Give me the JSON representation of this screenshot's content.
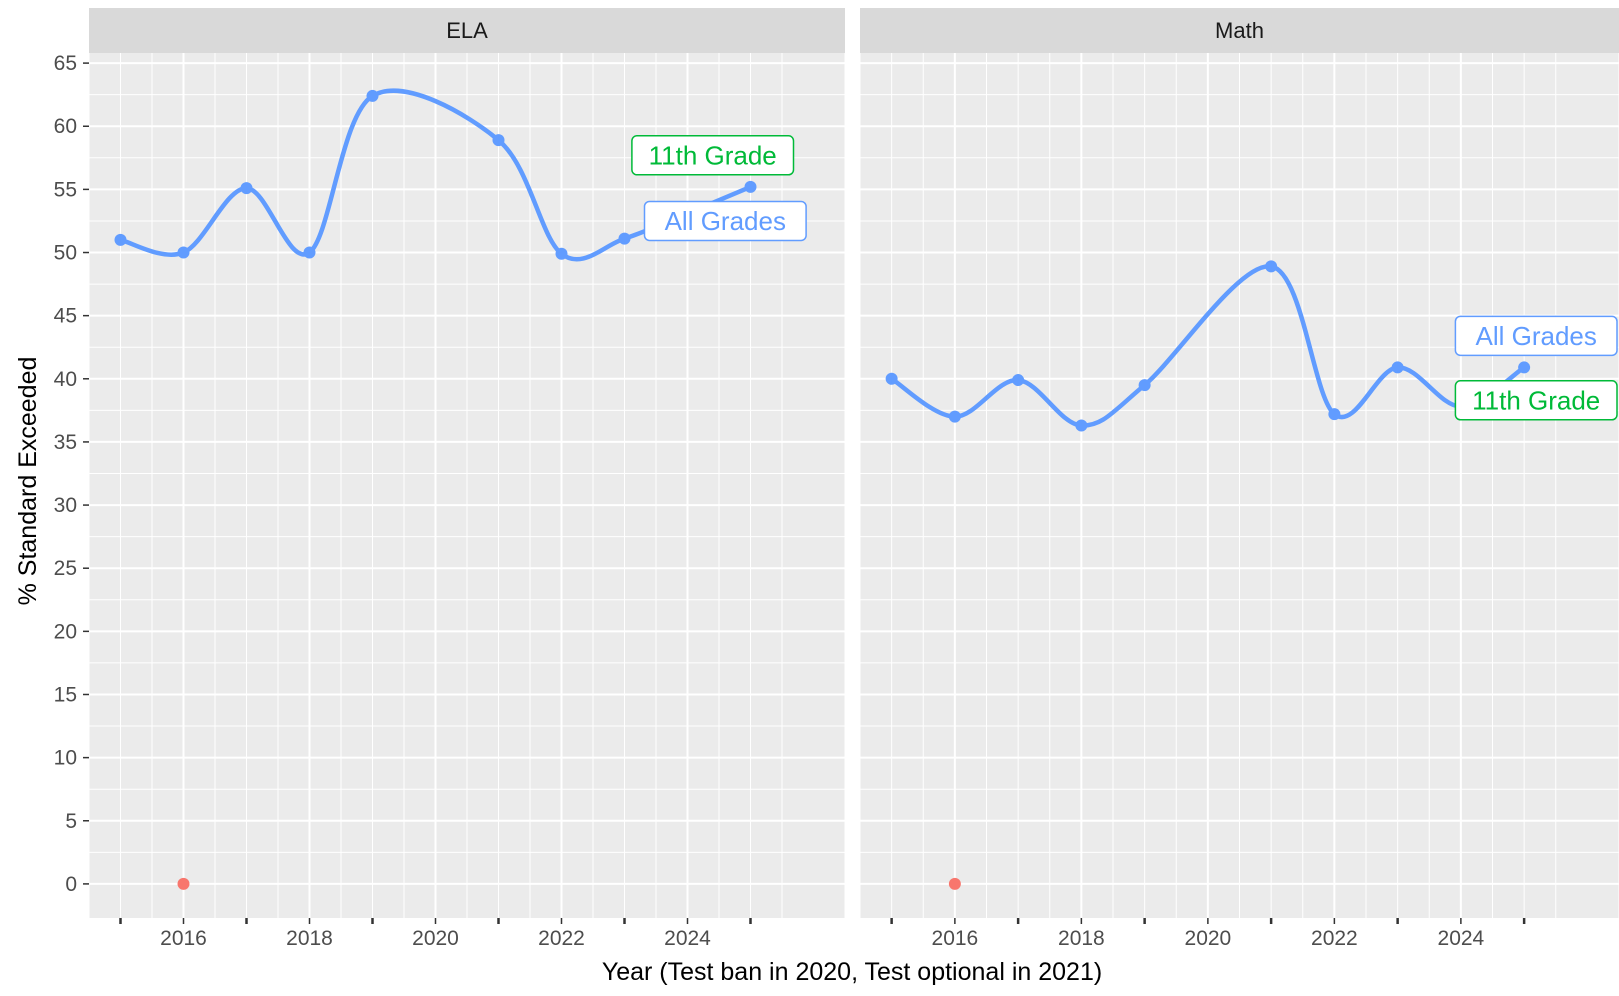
{
  "chart_data": {
    "type": "line",
    "facet_by": "subject",
    "panels": [
      "ELA",
      "Math"
    ],
    "xlabel": "Year (Test ban in 2020, Test optional in 2021)",
    "ylabel": "% Standard Exceeded",
    "x_ticks": [
      2016,
      2018,
      2020,
      2022,
      2024
    ],
    "y_ticks": [
      0,
      5,
      10,
      15,
      20,
      25,
      30,
      35,
      40,
      45,
      50,
      55,
      60,
      65
    ],
    "xlim": [
      2014.5,
      2026.5
    ],
    "ylim": [
      -2.7,
      65.8
    ],
    "grid": true,
    "colors": {
      "all_grades": "#619CFF",
      "eleventh_grade": "#00BA38",
      "outlier": "#F8766D",
      "strip": "#D9D9D9",
      "panel_bg": "#EBEBEB"
    },
    "series": [
      {
        "name": "All Grades",
        "panel": "ELA",
        "x": [
          2015,
          2016,
          2017,
          2018,
          2019,
          2021,
          2022,
          2023,
          2024
        ],
        "values": [
          51.0,
          50.0,
          55.1,
          50.0,
          62.4,
          58.9,
          49.9,
          51.1,
          53.1
        ]
      },
      {
        "name": "11th Grade",
        "panel": "ELA",
        "x": [
          2024,
          2025
        ],
        "values": [
          53.1,
          55.2
        ]
      },
      {
        "name": "All Grades",
        "panel": "Math",
        "x": [
          2015,
          2016,
          2017,
          2018,
          2019,
          2021,
          2022,
          2023,
          2025
        ],
        "values": [
          40.0,
          37.0,
          39.9,
          36.3,
          39.5,
          48.9,
          37.2,
          40.9,
          40.9
        ]
      },
      {
        "name": "11th Grade",
        "panel": "Math",
        "x": [
          2024
        ],
        "values": [
          37.8
        ]
      },
      {
        "name": "",
        "panel": "ELA",
        "x": [
          2016
        ],
        "values": [
          0
        ]
      },
      {
        "name": "",
        "panel": "Math",
        "x": [
          2016
        ],
        "values": [
          0
        ]
      }
    ],
    "curve_points": {
      "ELA": {
        "x": [
          2015,
          2016,
          2017,
          2018,
          2019,
          2021,
          2022,
          2023,
          2024,
          2025
        ],
        "values": [
          51.0,
          50.0,
          55.1,
          50.0,
          62.4,
          58.9,
          49.9,
          51.1,
          53.1,
          55.2
        ]
      },
      "Math": {
        "x": [
          2015,
          2016,
          2017,
          2018,
          2019,
          2021,
          2022,
          2023,
          2024,
          2025
        ],
        "values": [
          40.0,
          37.0,
          39.9,
          36.3,
          39.5,
          48.9,
          37.2,
          40.9,
          37.8,
          40.9
        ]
      }
    },
    "annotations": [
      {
        "panel": "ELA",
        "text": "11th Grade",
        "color": "#00BA38",
        "x": 2024.4,
        "y": 57.7
      },
      {
        "panel": "ELA",
        "text": "All Grades",
        "color": "#619CFF",
        "x": 2024.6,
        "y": 52.5
      },
      {
        "panel": "Math",
        "text": "All Grades",
        "color": "#619CFF",
        "x": 2025.3,
        "y": 43.4
      },
      {
        "panel": "Math",
        "text": "11th Grade",
        "color": "#00BA38",
        "x": 2025.3,
        "y": 38.3
      }
    ]
  }
}
